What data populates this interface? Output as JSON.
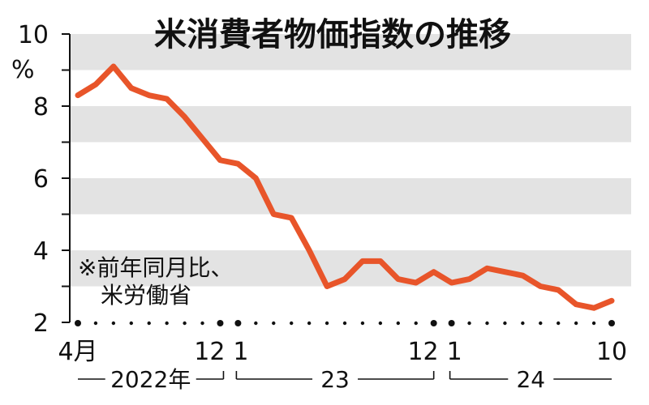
{
  "chart_data": {
    "type": "line",
    "title": "米消費者物価指数の推移",
    "unit": "%",
    "note_line1": "※前年同月比、",
    "note_line2": "米労働省",
    "ylim": [
      2,
      10
    ],
    "yticks": [
      "10",
      "8",
      "6",
      "4",
      "2"
    ],
    "ytick_values": [
      10,
      8,
      6,
      4,
      2
    ],
    "line_color": "#e8552a",
    "band_color": "#e3e3e3",
    "x": [
      "2022-04",
      "2022-05",
      "2022-06",
      "2022-07",
      "2022-08",
      "2022-09",
      "2022-10",
      "2022-11",
      "2022-12",
      "2023-01",
      "2023-02",
      "2023-03",
      "2023-04",
      "2023-05",
      "2023-06",
      "2023-07",
      "2023-08",
      "2023-09",
      "2023-10",
      "2023-11",
      "2023-12",
      "2024-01",
      "2024-02",
      "2024-03",
      "2024-04",
      "2024-05",
      "2024-06",
      "2024-07",
      "2024-08",
      "2024-09",
      "2024-10"
    ],
    "series": [
      {
        "values": [
          8.3,
          8.6,
          9.1,
          8.5,
          8.3,
          8.2,
          7.7,
          7.1,
          6.5,
          6.4,
          6.0,
          5.0,
          4.9,
          4.0,
          3.0,
          3.2,
          3.7,
          3.7,
          3.2,
          3.1,
          3.4,
          3.1,
          3.2,
          3.5,
          3.4,
          3.3,
          3.0,
          2.9,
          2.5,
          2.4,
          2.6
        ]
      }
    ],
    "xtick_labels": [
      {
        "index": 0,
        "label": "4月"
      },
      {
        "index": 8,
        "label": "12"
      },
      {
        "index": 9,
        "label": "1"
      },
      {
        "index": 20,
        "label": "12"
      },
      {
        "index": 21,
        "label": "1"
      },
      {
        "index": 30,
        "label": "10"
      }
    ],
    "year_labels": [
      {
        "from": 0,
        "to": 8,
        "label": "2022年"
      },
      {
        "from": 9,
        "to": 20,
        "label": "23"
      },
      {
        "from": 21,
        "to": 30,
        "label": "24"
      }
    ]
  }
}
